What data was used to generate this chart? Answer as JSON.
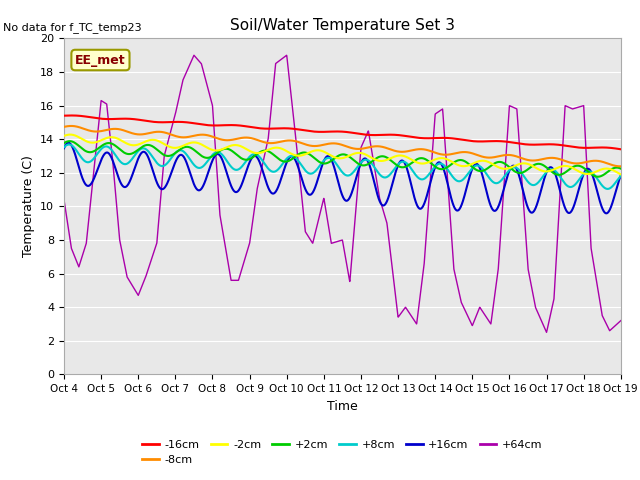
{
  "title": "Soil/Water Temperature Set 3",
  "xlabel": "Time",
  "ylabel": "Temperature (C)",
  "no_data_text": "No data for f_TC_temp23",
  "legend_label_text": "EE_met",
  "ylim": [
    0,
    20
  ],
  "xlim": [
    0,
    15
  ],
  "xtick_labels": [
    "Oct 4",
    "Oct 5",
    "Oct 6",
    "Oct 7",
    "Oct 8",
    "Oct 9",
    "Oct 10",
    "Oct 11",
    "Oct 12",
    "Oct 13",
    "Oct 14",
    "Oct 15",
    "Oct 16",
    "Oct 17",
    "Oct 18",
    "Oct 19"
  ],
  "series_colors": {
    "-16cm": "#ff0000",
    "-8cm": "#ff8c00",
    "-2cm": "#ffff00",
    "+2cm": "#00cc00",
    "+8cm": "#00cccc",
    "+16cm": "#0000cc",
    "+64cm": "#aa00aa"
  },
  "fig_bg_color": "#ffffff",
  "plot_bg_color": "#e8e8e8",
  "grid_color": "#ffffff",
  "legend_box_facecolor": "#ffffcc",
  "legend_box_edgecolor": "#999900"
}
